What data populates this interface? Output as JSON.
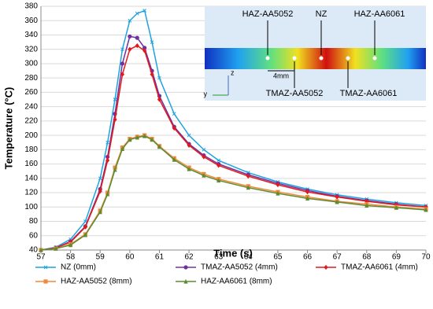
{
  "chart_data": {
    "type": "line",
    "x_label": "Time (s)",
    "y_label": "Temperature (°C)",
    "x": [
      57,
      57.5,
      58,
      58.5,
      59,
      59.25,
      59.5,
      59.75,
      60,
      60.25,
      60.5,
      60.75,
      61,
      61.5,
      62,
      62.5,
      63,
      64,
      65,
      66,
      67,
      68,
      69,
      70
    ],
    "series": [
      {
        "name": "NZ (0mm)",
        "color": "#1fa3e0",
        "marker": "cross",
        "values": [
          40,
          44,
          55,
          80,
          140,
          190,
          250,
          320,
          360,
          370,
          374,
          330,
          280,
          230,
          200,
          180,
          165,
          148,
          135,
          125,
          117,
          111,
          106,
          102
        ]
      },
      {
        "name": "TMAZ-AA5052 (4mm)",
        "color": "#7030a0",
        "marker": "circle",
        "values": [
          40,
          43,
          52,
          73,
          125,
          170,
          230,
          300,
          338,
          336,
          322,
          290,
          255,
          212,
          188,
          172,
          160,
          145,
          133,
          123,
          115,
          109,
          104,
          100
        ]
      },
      {
        "name": "TMAZ-AA6061 (4mm)",
        "color": "#e31a1c",
        "marker": "diamond",
        "values": [
          40,
          43,
          51,
          72,
          122,
          165,
          222,
          285,
          320,
          325,
          318,
          285,
          250,
          210,
          186,
          170,
          158,
          143,
          131,
          121,
          114,
          108,
          103,
          100
        ]
      },
      {
        "name": "HAZ-AA5052 (8mm)",
        "color": "#f08a3c",
        "marker": "square",
        "values": [
          40,
          42,
          48,
          62,
          95,
          120,
          155,
          183,
          195,
          198,
          200,
          195,
          185,
          168,
          155,
          146,
          139,
          129,
          121,
          114,
          108,
          104,
          100,
          97
        ]
      },
      {
        "name": "HAZ-AA6061 (8mm)",
        "color": "#5b8c32",
        "marker": "triangle",
        "values": [
          40,
          42,
          47,
          61,
          93,
          118,
          152,
          181,
          194,
          197,
          199,
          194,
          184,
          166,
          153,
          144,
          137,
          127,
          119,
          112,
          107,
          102,
          99,
          96
        ]
      }
    ],
    "xlim": [
      57,
      70
    ],
    "xticks": [
      57,
      58,
      59,
      60,
      61,
      62,
      63,
      64,
      65,
      66,
      67,
      68,
      69,
      70
    ],
    "ylim": [
      40,
      380
    ],
    "yticks": [
      40,
      60,
      80,
      100,
      120,
      140,
      160,
      180,
      200,
      220,
      240,
      260,
      280,
      300,
      320,
      340,
      360,
      380
    ],
    "grid": true,
    "inset_labels": {
      "haz5052": "HAZ-AA5052",
      "nz": "NZ",
      "haz6061": "HAZ-AA6061",
      "tmaz5052": "TMAZ-AA5052",
      "tmaz6061": "TMAZ-AA6061",
      "dist": "4mm",
      "z": "z",
      "y": "y"
    }
  }
}
